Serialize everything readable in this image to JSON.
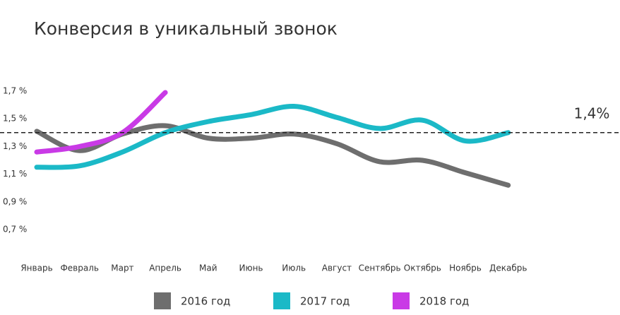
{
  "chart_data": {
    "type": "line",
    "title": "Конверсия в уникальный звонок",
    "categories": [
      "Январь",
      "Февраль",
      "Март",
      "Апрель",
      "Май",
      "Июнь",
      "Июль",
      "Август",
      "Сентябрь",
      "Октябрь",
      "Ноябрь",
      "Декабрь"
    ],
    "series": [
      {
        "name": "2016 год",
        "color": "#6e6e6e",
        "values": [
          1.41,
          1.27,
          1.39,
          1.45,
          1.36,
          1.36,
          1.39,
          1.32,
          1.19,
          1.2,
          1.11,
          1.02
        ]
      },
      {
        "name": "2017 год",
        "color": "#1bb9c7",
        "values": [
          1.15,
          1.16,
          1.26,
          1.4,
          1.48,
          1.53,
          1.59,
          1.51,
          1.43,
          1.49,
          1.34,
          1.4
        ]
      },
      {
        "name": "2018 год",
        "color": "#c93ae6",
        "values": [
          1.26,
          1.3,
          1.4,
          1.69,
          null,
          null,
          null,
          null,
          null,
          null,
          null,
          null
        ]
      }
    ],
    "ylim": [
      0.7,
      1.7
    ],
    "yticks": [
      {
        "value": 1.7,
        "label": "1,7 %"
      },
      {
        "value": 1.5,
        "label": "1,5 %"
      },
      {
        "value": 1.3,
        "label": "1,3 %"
      },
      {
        "value": 1.1,
        "label": "1,1 %"
      },
      {
        "value": 0.9,
        "label": "0,9 %"
      },
      {
        "value": 0.7,
        "label": "0,7 %"
      }
    ],
    "reference_line": {
      "value": 1.4,
      "label": "1,4%"
    },
    "grid": false,
    "legend": "bottom"
  }
}
